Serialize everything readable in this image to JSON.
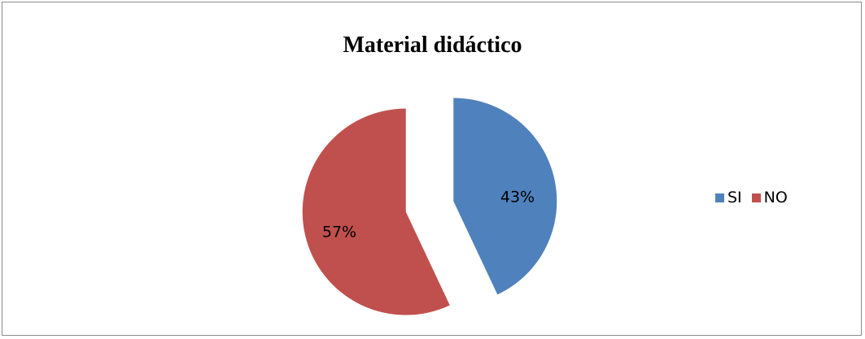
{
  "chart_data": {
    "type": "pie",
    "title": "Material didáctico",
    "categories": [
      "SI",
      "NO"
    ],
    "values": [
      43,
      57
    ],
    "labels": [
      "43%",
      "57%"
    ],
    "colors": [
      "#4F81BD",
      "#C0504D"
    ],
    "exploded": true,
    "legend_position": "right"
  }
}
